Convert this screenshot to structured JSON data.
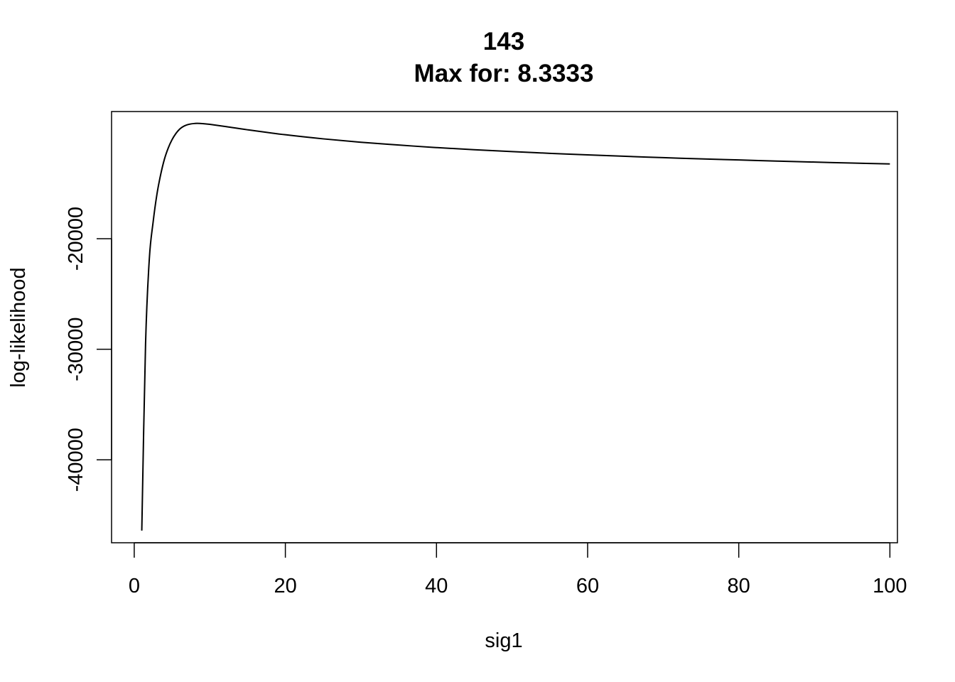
{
  "chart_data": {
    "type": "line",
    "title": "143",
    "subtitle": "Max for: 8.3333",
    "xlabel": "sig1",
    "ylabel": "log-likelihood",
    "xlim": [
      -3,
      101
    ],
    "ylim": [
      -47500,
      -8500
    ],
    "xticks": [
      0,
      20,
      40,
      60,
      80,
      100
    ],
    "yticks": [
      -20000,
      -30000,
      -40000
    ],
    "grid": false,
    "series": [
      {
        "x": [
          1,
          1.5,
          2,
          2.5,
          3,
          3.5,
          4,
          4.5,
          5,
          5.5,
          6,
          6.5,
          7,
          7.5,
          8,
          8.3333,
          9,
          10,
          12,
          15,
          20,
          25,
          30,
          35,
          40,
          45,
          50,
          55,
          60,
          65,
          70,
          75,
          80,
          85,
          90,
          95,
          100
        ],
        "y": [
          -46400,
          -29500,
          -21800,
          -18500,
          -16000,
          -14200,
          -12800,
          -11800,
          -11050,
          -10500,
          -10100,
          -9850,
          -9700,
          -9620,
          -9580,
          -9570,
          -9590,
          -9660,
          -9850,
          -10150,
          -10600,
          -10970,
          -11280,
          -11530,
          -11760,
          -11950,
          -12120,
          -12280,
          -12420,
          -12550,
          -12670,
          -12780,
          -12880,
          -12980,
          -13070,
          -13160,
          -13240
        ]
      }
    ]
  }
}
